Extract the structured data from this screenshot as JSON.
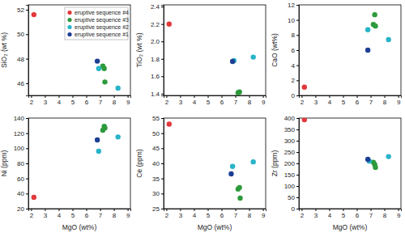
{
  "chart_data": [
    {
      "type": "scatter",
      "y_label": "SiO₂ (wt %)",
      "legend": "upper right",
      "xlim": [
        1.8,
        9.2
      ],
      "xticks": [
        2,
        3,
        4,
        5,
        6,
        7,
        8,
        9
      ],
      "ylim": [
        45,
        52.4
      ],
      "yticks": [
        46,
        48,
        50,
        52
      ],
      "series": [
        {
          "name": "eruptive sequence #4",
          "color": "#e2383b",
          "x": [
            2.2
          ],
          "values": [
            51.6
          ]
        },
        {
          "name": "eruptive sequence #3",
          "color": "#2d9a3c",
          "x": [
            7.2,
            7.3,
            7.35
          ],
          "values": [
            47.4,
            47.2,
            46.1
          ]
        },
        {
          "name": "eruptive sequence #2",
          "color": "#28b4c9",
          "x": [
            6.9,
            8.3
          ],
          "values": [
            47.2,
            45.6
          ]
        },
        {
          "name": "eruptive sequence #1",
          "color": "#1c3f94",
          "x": [
            6.8
          ],
          "values": [
            47.8
          ]
        }
      ]
    },
    {
      "type": "scatter",
      "y_label": "TiO₂ (wt %)",
      "xlim": [
        1.8,
        9.2
      ],
      "xticks": [
        2,
        3,
        4,
        5,
        6,
        7,
        8,
        9
      ],
      "ylim": [
        1.38,
        2.42
      ],
      "yticks": [
        1.4,
        1.6,
        1.8,
        {
          "value": 2,
          "label": "2.0"
        },
        2.2,
        2.4
      ],
      "series": [
        {
          "color": "#e2383b",
          "x": [
            2.2
          ],
          "values": [
            2.2
          ]
        },
        {
          "color": "#2d9a3c",
          "x": [
            7.2,
            7.3,
            7.25
          ],
          "values": [
            1.41,
            1.42,
            1.415
          ]
        },
        {
          "color": "#28b4c9",
          "x": [
            6.9,
            8.3
          ],
          "values": [
            1.78,
            1.82
          ]
        },
        {
          "color": "#1c3f94",
          "x": [
            6.8
          ],
          "values": [
            1.77
          ]
        }
      ]
    },
    {
      "type": "scatter",
      "y_label": "CaO (wt%)",
      "xlim": [
        1.8,
        9.2
      ],
      "xticks": [
        2,
        3,
        4,
        5,
        6,
        7,
        8,
        9
      ],
      "ylim": [
        0,
        12
      ],
      "yticks": [
        0,
        2,
        4,
        6,
        8,
        10,
        12
      ],
      "series": [
        {
          "color": "#e2383b",
          "x": [
            2.2
          ],
          "values": [
            1.1
          ]
        },
        {
          "color": "#2d9a3c",
          "x": [
            7.2,
            7.3,
            7.35
          ],
          "values": [
            9.4,
            10.7,
            9.2
          ]
        },
        {
          "color": "#28b4c9",
          "x": [
            6.8,
            8.3
          ],
          "values": [
            8.7,
            7.4
          ]
        },
        {
          "color": "#1c3f94",
          "x": [
            6.8
          ],
          "values": [
            6.0
          ]
        }
      ]
    },
    {
      "type": "scatter",
      "y_label": "Ni (ppm)",
      "x_label": "MgO (wt%)",
      "xlim": [
        1.8,
        9.2
      ],
      "xticks": [
        2,
        3,
        4,
        5,
        6,
        7,
        8,
        9
      ],
      "ylim": [
        20,
        140
      ],
      "yticks": [
        20,
        40,
        60,
        80,
        100,
        120,
        140
      ],
      "series": [
        {
          "color": "#e2383b",
          "x": [
            2.2
          ],
          "values": [
            35
          ]
        },
        {
          "color": "#2d9a3c",
          "x": [
            7.2,
            7.3,
            7.35
          ],
          "values": [
            124,
            129,
            127
          ]
        },
        {
          "color": "#28b4c9",
          "x": [
            6.9,
            8.3
          ],
          "values": [
            96,
            115
          ]
        },
        {
          "color": "#1c3f94",
          "x": [
            6.8
          ],
          "values": [
            111
          ]
        }
      ]
    },
    {
      "type": "scatter",
      "y_label": "Ce (ppm)",
      "x_label": "MgO (wt%)",
      "xlim": [
        1.8,
        9.2
      ],
      "xticks": [
        2,
        3,
        4,
        5,
        6,
        7,
        8,
        9
      ],
      "ylim": [
        25,
        55
      ],
      "yticks": [
        25,
        30,
        35,
        40,
        45,
        50,
        55
      ],
      "series": [
        {
          "color": "#e2383b",
          "x": [
            2.2
          ],
          "values": [
            53
          ]
        },
        {
          "color": "#2d9a3c",
          "x": [
            7.2,
            7.3,
            7.35
          ],
          "values": [
            31.5,
            32,
            28.5
          ]
        },
        {
          "color": "#28b4c9",
          "x": [
            6.8,
            8.3
          ],
          "values": [
            39,
            40.5
          ]
        },
        {
          "color": "#1c3f94",
          "x": [
            6.7
          ],
          "values": [
            36.5
          ]
        }
      ]
    },
    {
      "type": "scatter",
      "y_label": "Zr (ppm)",
      "x_label": "MgO (wt%)",
      "xlim": [
        1.8,
        9.2
      ],
      "xticks": [
        2,
        3,
        4,
        5,
        6,
        7,
        8,
        9
      ],
      "ylim": [
        0,
        400
      ],
      "yticks": [
        0,
        50,
        100,
        150,
        200,
        250,
        300,
        350,
        400
      ],
      "series": [
        {
          "color": "#e2383b",
          "x": [
            2.2
          ],
          "values": [
            393
          ]
        },
        {
          "color": "#2d9a3c",
          "x": [
            7.2,
            7.3,
            7.35
          ],
          "values": [
            205,
            195,
            182
          ]
        },
        {
          "color": "#28b4c9",
          "x": [
            6.9,
            8.3
          ],
          "values": [
            210,
            230
          ]
        },
        {
          "color": "#1c3f94",
          "x": [
            6.8
          ],
          "values": [
            218
          ]
        }
      ]
    }
  ]
}
